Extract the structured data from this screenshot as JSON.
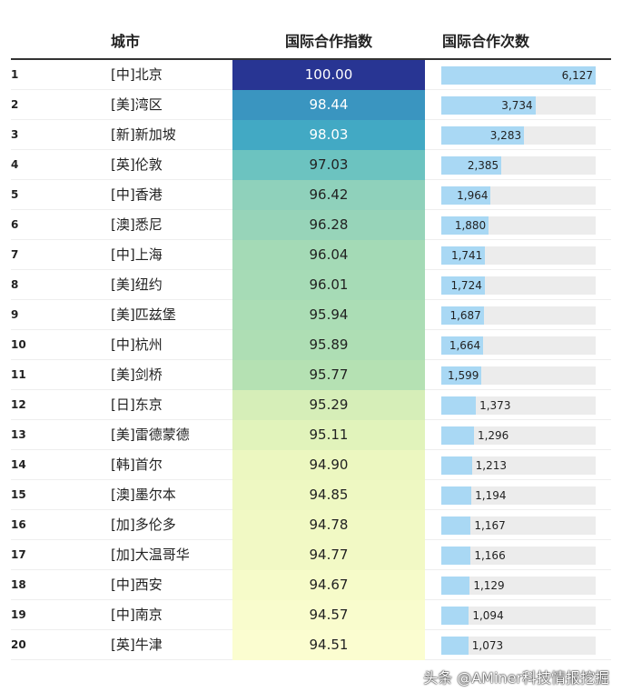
{
  "chart_data": {
    "type": "table",
    "columns": [
      "",
      "城市",
      "国际合作指数",
      "国际合作次数"
    ],
    "rows": [
      {
        "rank": "1",
        "city": "[中]北京",
        "index": "100.00",
        "count": 6127,
        "count_label": "6,127",
        "color": "#283593",
        "text_color": "#ffffff"
      },
      {
        "rank": "2",
        "city": "[美]湾区",
        "index": "98.44",
        "count": 3734,
        "count_label": "3,734",
        "color": "#3a95c0",
        "text_color": "#ffffff"
      },
      {
        "rank": "3",
        "city": "[新]新加坡",
        "index": "98.03",
        "count": 3283,
        "count_label": "3,283",
        "color": "#42a9c4",
        "text_color": "#ffffff"
      },
      {
        "rank": "4",
        "city": "[英]伦敦",
        "index": "97.03",
        "count": 2385,
        "count_label": "2,385",
        "color": "#6cc3c0",
        "text_color": "#222222"
      },
      {
        "rank": "5",
        "city": "[中]香港",
        "index": "96.42",
        "count": 1964,
        "count_label": "1,964",
        "color": "#8fd1bb",
        "text_color": "#222222"
      },
      {
        "rank": "6",
        "city": "[澳]悉尼",
        "index": "96.28",
        "count": 1880,
        "count_label": "1,880",
        "color": "#97d4b9",
        "text_color": "#222222"
      },
      {
        "rank": "7",
        "city": "[中]上海",
        "index": "96.04",
        "count": 1741,
        "count_label": "1,741",
        "color": "#a4dab6",
        "text_color": "#222222"
      },
      {
        "rank": "8",
        "city": "[美]纽约",
        "index": "96.01",
        "count": 1724,
        "count_label": "1,724",
        "color": "#a6dbb6",
        "text_color": "#222222"
      },
      {
        "rank": "9",
        "city": "[美]匹兹堡",
        "index": "95.94",
        "count": 1687,
        "count_label": "1,687",
        "color": "#abddb5",
        "text_color": "#222222"
      },
      {
        "rank": "10",
        "city": "[中]杭州",
        "index": "95.89",
        "count": 1664,
        "count_label": "1,664",
        "color": "#aedeb4",
        "text_color": "#222222"
      },
      {
        "rank": "11",
        "city": "[美]剑桥",
        "index": "95.77",
        "count": 1599,
        "count_label": "1,599",
        "color": "#b5e1b3",
        "text_color": "#222222"
      },
      {
        "rank": "12",
        "city": "[日]东京",
        "index": "95.29",
        "count": 1373,
        "count_label": "1,373",
        "color": "#d6eeb8",
        "text_color": "#222222"
      },
      {
        "rank": "13",
        "city": "[美]雷德蒙德",
        "index": "95.11",
        "count": 1296,
        "count_label": "1,296",
        "color": "#e1f3bb",
        "text_color": "#222222"
      },
      {
        "rank": "14",
        "city": "[韩]首尔",
        "index": "94.90",
        "count": 1213,
        "count_label": "1,213",
        "color": "#ecf7c0",
        "text_color": "#222222"
      },
      {
        "rank": "15",
        "city": "[澳]墨尔本",
        "index": "94.85",
        "count": 1194,
        "count_label": "1,194",
        "color": "#eef8c2",
        "text_color": "#222222"
      },
      {
        "rank": "16",
        "city": "[加]多伦多",
        "index": "94.78",
        "count": 1167,
        "count_label": "1,167",
        "color": "#f1f9c4",
        "text_color": "#222222"
      },
      {
        "rank": "17",
        "city": "[加]大温哥华",
        "index": "94.77",
        "count": 1166,
        "count_label": "1,166",
        "color": "#f2f9c5",
        "text_color": "#222222"
      },
      {
        "rank": "18",
        "city": "[中]西安",
        "index": "94.67",
        "count": 1129,
        "count_label": "1,129",
        "color": "#f6fbc9",
        "text_color": "#222222"
      },
      {
        "rank": "19",
        "city": "[中]南京",
        "index": "94.57",
        "count": 1094,
        "count_label": "1,094",
        "color": "#f9fccd",
        "text_color": "#222222"
      },
      {
        "rank": "20",
        "city": "[英]牛津",
        "index": "94.51",
        "count": 1073,
        "count_label": "1,073",
        "color": "#fbfdd0",
        "text_color": "#222222"
      }
    ],
    "bar_color": "#a9d8f4",
    "track_color": "#ececec"
  },
  "watermark": "头条 @AMiner科技情报挖掘"
}
